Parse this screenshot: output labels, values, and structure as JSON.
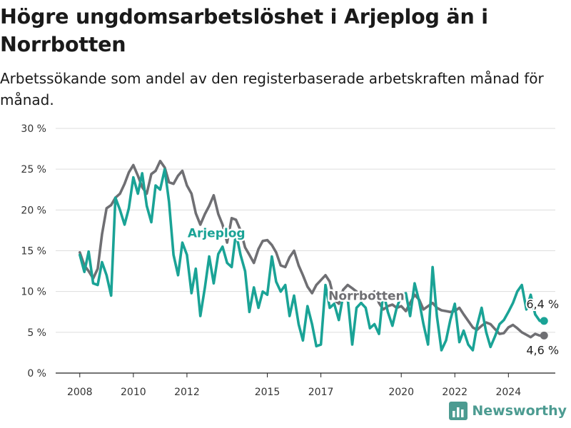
{
  "header": {
    "title": "Högre ungdomsarbetslöshet i Arjeplog än i Norrbotten",
    "subtitle": "Arbetssökande som andel av den registerbaserade arbetskraften månad för månad."
  },
  "branding": {
    "name": "Newsworthy",
    "icon": "bar-chart-logo-icon",
    "color": "#4c9b91"
  },
  "chart_data": {
    "type": "line",
    "y_tick_labels": [
      "0 %",
      "5 %",
      "10 %",
      "15 %",
      "20 %",
      "25 %",
      "30 %"
    ],
    "y_ticks": [
      0,
      5,
      10,
      15,
      20,
      25,
      30
    ],
    "ylim": [
      0,
      30
    ],
    "x_ticks": [
      2008,
      2010,
      2012,
      2015,
      2017,
      2020,
      2022,
      2024
    ],
    "x_tick_labels": [
      "2008",
      "2010",
      "2012",
      "2015",
      "2017",
      "2020",
      "2022",
      "2024"
    ],
    "xlim": [
      2007.1,
      2025.75
    ],
    "grid": "horizontal",
    "series": [
      {
        "name": "Norrbotten",
        "color": "#6f6f73",
        "end_label": "4,6 %",
        "x": [
          2008.0,
          2008.17,
          2008.33,
          2008.5,
          2008.67,
          2008.83,
          2009.0,
          2009.17,
          2009.33,
          2009.5,
          2009.67,
          2009.83,
          2010.0,
          2010.17,
          2010.33,
          2010.5,
          2010.67,
          2010.83,
          2011.0,
          2011.17,
          2011.33,
          2011.5,
          2011.67,
          2011.83,
          2012.0,
          2012.17,
          2012.33,
          2012.5,
          2012.67,
          2012.83,
          2013.0,
          2013.17,
          2013.33,
          2013.5,
          2013.67,
          2013.83,
          2014.0,
          2014.17,
          2014.33,
          2014.5,
          2014.67,
          2014.83,
          2015.0,
          2015.17,
          2015.33,
          2015.5,
          2015.67,
          2015.83,
          2016.0,
          2016.17,
          2016.33,
          2016.5,
          2016.67,
          2016.83,
          2017.0,
          2017.17,
          2017.33,
          2017.5,
          2017.67,
          2017.83,
          2018.0,
          2018.17,
          2018.33,
          2018.5,
          2018.67,
          2018.83,
          2019.0,
          2019.17,
          2019.33,
          2019.5,
          2019.67,
          2019.83,
          2020.0,
          2020.17,
          2020.33,
          2020.5,
          2020.67,
          2020.83,
          2021.0,
          2021.17,
          2021.33,
          2021.5,
          2021.67,
          2021.83,
          2022.0,
          2022.17,
          2022.33,
          2022.5,
          2022.67,
          2022.83,
          2023.0,
          2023.17,
          2023.33,
          2023.5,
          2023.67,
          2023.83,
          2024.0,
          2024.17,
          2024.33,
          2024.5,
          2024.67,
          2024.83,
          2025.0,
          2025.17,
          2025.33
        ],
        "values": [
          14.8,
          13.2,
          12.5,
          11.6,
          12.8,
          17.0,
          20.2,
          20.6,
          21.5,
          22.0,
          23.2,
          24.6,
          25.5,
          24.2,
          22.8,
          22.0,
          24.4,
          24.8,
          26.0,
          25.2,
          23.4,
          23.2,
          24.2,
          24.8,
          23.0,
          22.0,
          19.6,
          18.2,
          19.5,
          20.5,
          21.8,
          19.5,
          18.2,
          16.0,
          19.0,
          18.8,
          17.5,
          15.4,
          14.5,
          13.5,
          15.2,
          16.2,
          16.3,
          15.7,
          14.8,
          13.2,
          13.0,
          14.2,
          15.0,
          13.2,
          12.0,
          10.6,
          9.8,
          10.8,
          11.4,
          12.0,
          11.2,
          9.0,
          8.5,
          10.2,
          10.8,
          10.4,
          10.0,
          8.8,
          9.2,
          9.6,
          10.0,
          8.6,
          7.8,
          8.2,
          8.4,
          8.0,
          8.2,
          7.6,
          8.6,
          9.6,
          9.0,
          7.8,
          8.2,
          8.6,
          8.0,
          7.7,
          7.6,
          7.5,
          7.6,
          8.0,
          7.2,
          6.4,
          5.6,
          5.3,
          5.8,
          6.2,
          6.0,
          5.4,
          4.8,
          4.9,
          5.6,
          5.9,
          5.5,
          5.0,
          4.7,
          4.4,
          4.8,
          4.6,
          4.6
        ]
      },
      {
        "name": "Arjeplog",
        "color": "#1aa396",
        "end_label": "6,4 %",
        "x": [
          2008.0,
          2008.17,
          2008.33,
          2008.5,
          2008.67,
          2008.83,
          2009.0,
          2009.17,
          2009.33,
          2009.5,
          2009.67,
          2009.83,
          2010.0,
          2010.17,
          2010.33,
          2010.5,
          2010.67,
          2010.83,
          2011.0,
          2011.17,
          2011.33,
          2011.5,
          2011.67,
          2011.83,
          2012.0,
          2012.17,
          2012.33,
          2012.5,
          2012.67,
          2012.83,
          2013.0,
          2013.17,
          2013.33,
          2013.5,
          2013.67,
          2013.83,
          2014.0,
          2014.17,
          2014.33,
          2014.5,
          2014.67,
          2014.83,
          2015.0,
          2015.17,
          2015.33,
          2015.5,
          2015.67,
          2015.83,
          2016.0,
          2016.17,
          2016.33,
          2016.5,
          2016.67,
          2016.83,
          2017.0,
          2017.17,
          2017.33,
          2017.5,
          2017.67,
          2017.83,
          2018.0,
          2018.17,
          2018.33,
          2018.5,
          2018.67,
          2018.83,
          2019.0,
          2019.17,
          2019.33,
          2019.5,
          2019.67,
          2019.83,
          2020.0,
          2020.17,
          2020.33,
          2020.5,
          2020.67,
          2020.83,
          2021.0,
          2021.17,
          2021.33,
          2021.5,
          2021.67,
          2021.83,
          2022.0,
          2022.17,
          2022.33,
          2022.5,
          2022.67,
          2022.83,
          2023.0,
          2023.17,
          2023.33,
          2023.5,
          2023.67,
          2023.83,
          2024.0,
          2024.17,
          2024.33,
          2024.5,
          2024.67,
          2024.83,
          2025.0,
          2025.17,
          2025.33
        ],
        "values": [
          14.5,
          12.4,
          14.9,
          11.0,
          10.8,
          13.6,
          12.0,
          9.5,
          21.5,
          20.0,
          18.2,
          20.2,
          24.0,
          22.0,
          24.5,
          20.5,
          18.5,
          23.0,
          22.5,
          25.0,
          21.0,
          14.5,
          12.0,
          16.0,
          14.5,
          9.8,
          12.8,
          7.0,
          10.5,
          14.3,
          11.0,
          14.6,
          15.5,
          13.5,
          13.0,
          17.2,
          14.5,
          12.5,
          7.5,
          10.5,
          8.0,
          10.0,
          9.6,
          14.3,
          11.2,
          10.0,
          10.8,
          7.0,
          9.5,
          6.0,
          4.0,
          8.2,
          6.0,
          3.3,
          3.5,
          10.8,
          8.0,
          8.5,
          6.5,
          9.5,
          9.2,
          3.5,
          8.0,
          8.6,
          8.0,
          5.5,
          6.0,
          4.8,
          10.0,
          7.5,
          5.8,
          8.0,
          9.5,
          9.8,
          7.0,
          11.0,
          8.8,
          6.0,
          3.5,
          13.0,
          7.0,
          2.8,
          4.0,
          6.5,
          8.5,
          3.8,
          5.2,
          3.5,
          2.8,
          5.8,
          8.0,
          5.0,
          3.2,
          4.5,
          6.0,
          6.5,
          7.5,
          8.6,
          10.0,
          10.8,
          7.8,
          9.6,
          7.2,
          6.4,
          6.4
        ]
      }
    ]
  }
}
